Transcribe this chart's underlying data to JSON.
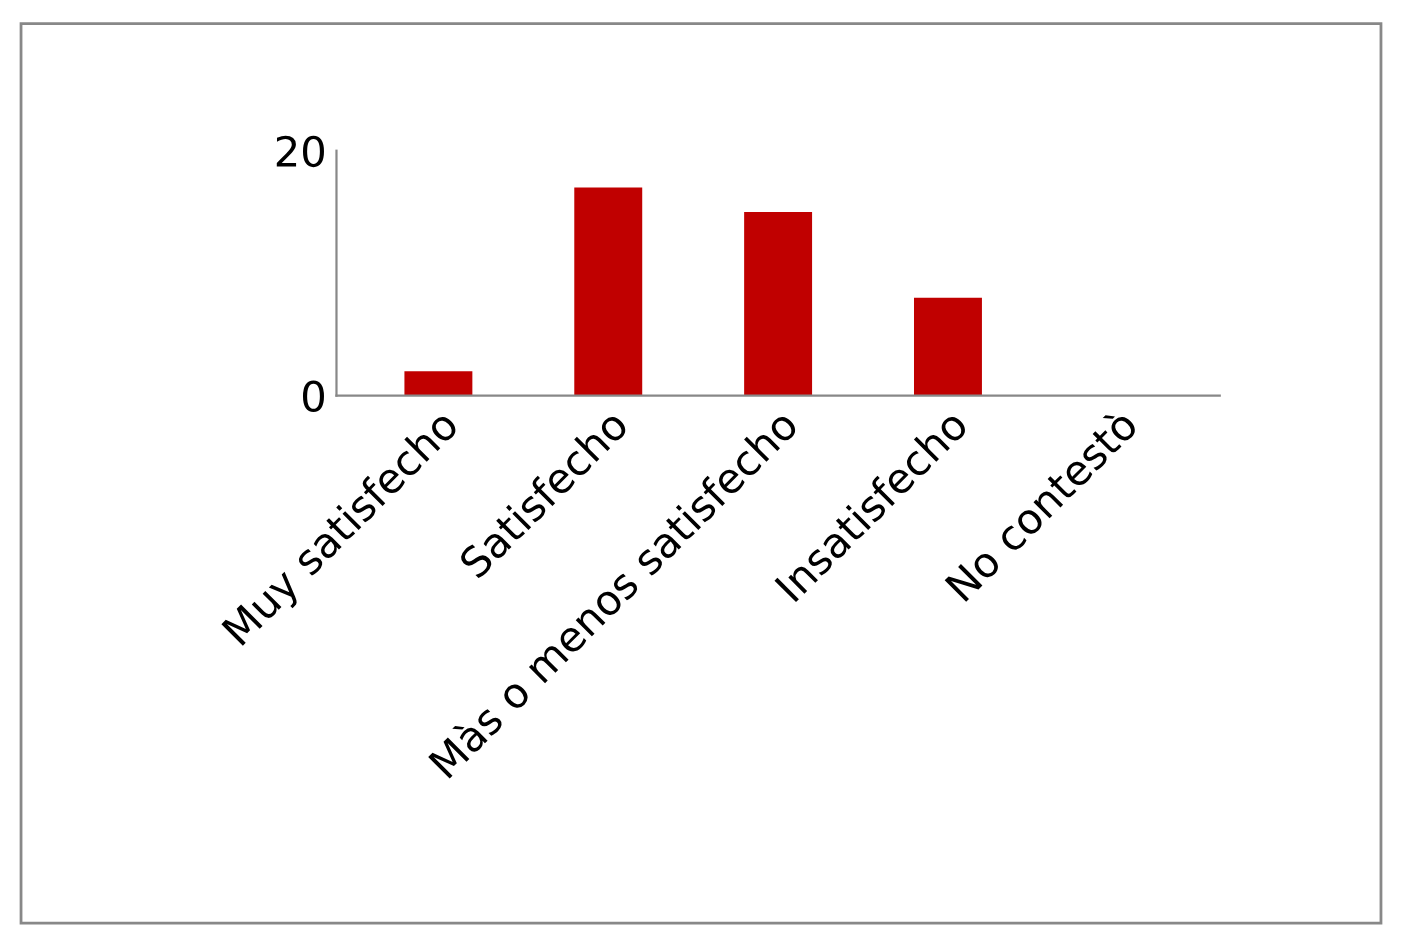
{
  "chart_data": {
    "type": "bar",
    "categories": [
      "Muy satisfecho",
      "Satisfecho",
      "Màs o menos satisfecho",
      "Insatisfecho",
      "No contestò"
    ],
    "values": [
      2,
      17,
      15,
      8,
      0
    ],
    "color": "#c00000",
    "ylim": [
      0,
      20
    ],
    "yticks": [
      0,
      20
    ],
    "grid": false
  }
}
